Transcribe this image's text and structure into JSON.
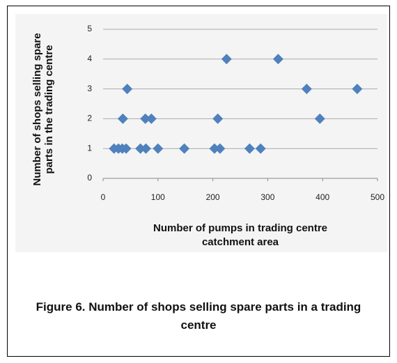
{
  "chart_data": {
    "type": "scatter",
    "xlabel": "Number of pumps in trading centre catchment area",
    "ylabel": "Number of shops selling spare parts in the trading centre",
    "caption": "Figure 6. Number of shops selling spare parts in a trading centre",
    "x": [
      20,
      28,
      35,
      42,
      68,
      78,
      100,
      148,
      203,
      213,
      267,
      287,
      36,
      77,
      88,
      209,
      395,
      44,
      371,
      463,
      225,
      319
    ],
    "values": [
      1,
      1,
      1,
      1,
      1,
      1,
      1,
      1,
      1,
      1,
      1,
      1,
      2,
      2,
      2,
      2,
      2,
      3,
      3,
      3,
      4,
      4
    ],
    "color": "#4f81bd",
    "xlim": [
      0,
      500
    ],
    "xticks": [
      0,
      100,
      200,
      300,
      400,
      500
    ],
    "ylim": [
      0,
      5
    ],
    "yticks": [
      0,
      1,
      2,
      3,
      4,
      5
    ],
    "grid": true
  }
}
